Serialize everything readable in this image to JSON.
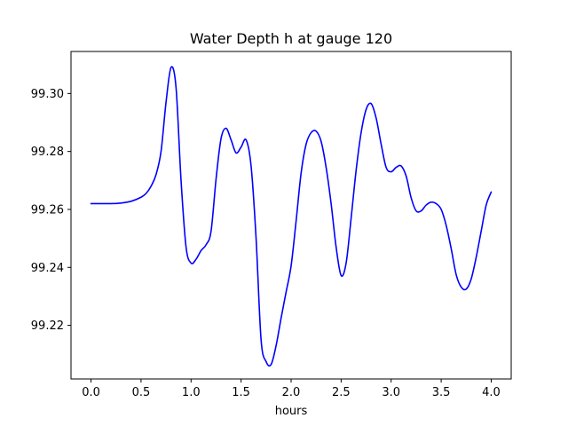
{
  "chart_data": {
    "type": "line",
    "title": "Water Depth h at gauge 120",
    "xlabel": "hours",
    "ylabel": "",
    "xlim": [
      -0.2,
      4.2
    ],
    "ylim": [
      99.2015,
      99.3145
    ],
    "xticks": [
      0.0,
      0.5,
      1.0,
      1.5,
      2.0,
      2.5,
      3.0,
      3.5,
      4.0
    ],
    "xtick_labels": [
      "0.0",
      "0.5",
      "1.0",
      "1.5",
      "2.0",
      "2.5",
      "3.0",
      "3.5",
      "4.0"
    ],
    "yticks": [
      99.22,
      99.24,
      99.26,
      99.28,
      99.3
    ],
    "ytick_labels": [
      "99.22",
      "99.24",
      "99.26",
      "99.28",
      "99.30"
    ],
    "grid": false,
    "series": [
      {
        "color": "#0000ff",
        "x": [
          0.0,
          0.1,
          0.2,
          0.3,
          0.4,
          0.5,
          0.55,
          0.6,
          0.65,
          0.7,
          0.75,
          0.8,
          0.85,
          0.9,
          0.95,
          1.0,
          1.05,
          1.1,
          1.15,
          1.2,
          1.25,
          1.3,
          1.35,
          1.4,
          1.45,
          1.5,
          1.55,
          1.6,
          1.65,
          1.7,
          1.75,
          1.8,
          1.85,
          1.9,
          1.95,
          2.0,
          2.05,
          2.1,
          2.15,
          2.2,
          2.25,
          2.3,
          2.35,
          2.4,
          2.45,
          2.5,
          2.55,
          2.6,
          2.65,
          2.7,
          2.75,
          2.8,
          2.85,
          2.9,
          2.95,
          3.0,
          3.05,
          3.1,
          3.15,
          3.2,
          3.25,
          3.3,
          3.35,
          3.4,
          3.45,
          3.5,
          3.55,
          3.6,
          3.65,
          3.7,
          3.75,
          3.8,
          3.85,
          3.9,
          3.95,
          4.0
        ],
        "values": [
          99.262,
          99.262,
          99.262,
          99.2622,
          99.2628,
          99.2642,
          99.2655,
          99.268,
          99.272,
          99.28,
          99.297,
          99.309,
          99.302,
          99.27,
          99.247,
          99.2415,
          99.2428,
          99.2458,
          99.2478,
          99.2525,
          99.2705,
          99.2845,
          99.288,
          99.284,
          99.2795,
          99.2815,
          99.284,
          99.275,
          99.25,
          99.215,
          99.2075,
          99.2065,
          99.213,
          99.2225,
          99.2315,
          99.2405,
          99.256,
          99.2725,
          99.2825,
          99.2865,
          99.287,
          99.2835,
          99.2745,
          99.262,
          99.247,
          99.2372,
          99.2415,
          99.257,
          99.2735,
          99.2865,
          99.2945,
          99.2965,
          99.2915,
          99.2825,
          99.2745,
          99.273,
          99.2745,
          99.275,
          99.2715,
          99.264,
          99.2595,
          99.2595,
          99.2615,
          99.2625,
          99.262,
          99.26,
          99.2545,
          99.2465,
          99.2375,
          99.2332,
          99.2325,
          99.236,
          99.2435,
          99.2525,
          99.2615,
          99.266
        ]
      }
    ]
  }
}
